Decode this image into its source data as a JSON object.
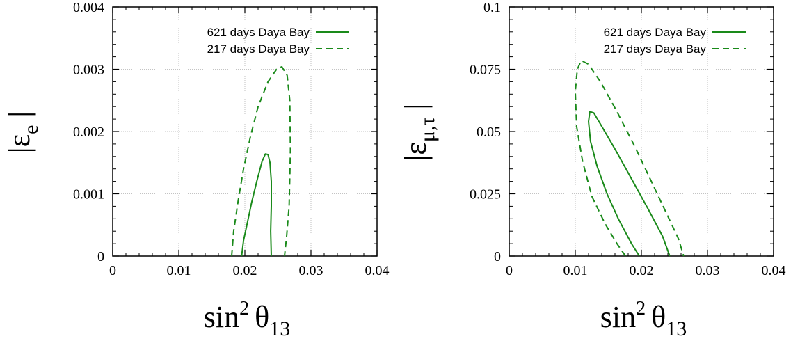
{
  "chart_data": [
    {
      "type": "line",
      "xlabel": "sin² θ13",
      "ylabel": "|εe |",
      "xlim": [
        0,
        0.04
      ],
      "ylim": [
        0,
        0.004
      ],
      "x_ticks": [
        "0",
        "0.01",
        "0.02",
        "0.03",
        "0.04"
      ],
      "y_ticks": [
        "0",
        "0.001",
        "0.002",
        "0.003",
        "0.004"
      ],
      "grid": true,
      "legend_position": "top-right",
      "series": [
        {
          "name": "621 days Daya Bay",
          "style": "solid",
          "color": "#1a8a1a",
          "points": [
            [
              0.0195,
              0
            ],
            [
              0.0198,
              0.00025
            ],
            [
              0.0203,
              0.0005
            ],
            [
              0.021,
              0.00085
            ],
            [
              0.0218,
              0.0012
            ],
            [
              0.0226,
              0.00152
            ],
            [
              0.0231,
              0.00164
            ],
            [
              0.0235,
              0.00163
            ],
            [
              0.0238,
              0.0015
            ],
            [
              0.024,
              0.0012
            ],
            [
              0.024,
              0.0008
            ],
            [
              0.0239,
              0.0004
            ],
            [
              0.024,
              0
            ]
          ]
        },
        {
          "name": "217 days Daya Bay",
          "style": "dashed",
          "color": "#1a8a1a",
          "points": [
            [
              0.018,
              0
            ],
            [
              0.0183,
              0.0004
            ],
            [
              0.019,
              0.0009
            ],
            [
              0.0198,
              0.0014
            ],
            [
              0.0208,
              0.0019
            ],
            [
              0.022,
              0.0024
            ],
            [
              0.0235,
              0.0028
            ],
            [
              0.0248,
              0.003
            ],
            [
              0.0256,
              0.00304
            ],
            [
              0.0264,
              0.0029
            ],
            [
              0.0268,
              0.0025
            ],
            [
              0.0269,
              0.0017
            ],
            [
              0.0267,
              0.0008
            ],
            [
              0.0263,
              0.0003
            ],
            [
              0.026,
              0
            ]
          ]
        }
      ]
    },
    {
      "type": "line",
      "xlabel": "sin² θ13",
      "ylabel": "|εμ,τ |",
      "xlim": [
        0,
        0.04
      ],
      "ylim": [
        0,
        0.1
      ],
      "x_ticks": [
        "0",
        "0.01",
        "0.02",
        "0.03",
        "0.04"
      ],
      "y_ticks": [
        "0",
        "0.025",
        "0.05",
        "0.075",
        "0.1"
      ],
      "grid": true,
      "legend_position": "top-right",
      "series": [
        {
          "name": "621 days Daya Bay",
          "style": "solid",
          "color": "#1a8a1a",
          "points": [
            [
              0.0197,
              0
            ],
            [
              0.0185,
              0.005
            ],
            [
              0.0165,
              0.015
            ],
            [
              0.0148,
              0.025
            ],
            [
              0.0133,
              0.036
            ],
            [
              0.0123,
              0.046
            ],
            [
              0.012,
              0.054
            ],
            [
              0.0122,
              0.058
            ],
            [
              0.0128,
              0.0575
            ],
            [
              0.0138,
              0.053
            ],
            [
              0.016,
              0.043
            ],
            [
              0.0185,
              0.031
            ],
            [
              0.021,
              0.019
            ],
            [
              0.0232,
              0.008
            ],
            [
              0.0243,
              0
            ]
          ]
        },
        {
          "name": "217 days Daya Bay",
          "style": "dashed",
          "color": "#1a8a1a",
          "points": [
            [
              0.0176,
              0
            ],
            [
              0.0163,
              0.005
            ],
            [
              0.0145,
              0.013
            ],
            [
              0.0125,
              0.024
            ],
            [
              0.0111,
              0.038
            ],
            [
              0.0102,
              0.052
            ],
            [
              0.01,
              0.066
            ],
            [
              0.0103,
              0.075
            ],
            [
              0.0109,
              0.0785
            ],
            [
              0.012,
              0.077
            ],
            [
              0.0138,
              0.07
            ],
            [
              0.0163,
              0.058
            ],
            [
              0.019,
              0.044
            ],
            [
              0.0215,
              0.03
            ],
            [
              0.024,
              0.016
            ],
            [
              0.0256,
              0.007
            ],
            [
              0.0264,
              0
            ]
          ]
        }
      ]
    }
  ]
}
